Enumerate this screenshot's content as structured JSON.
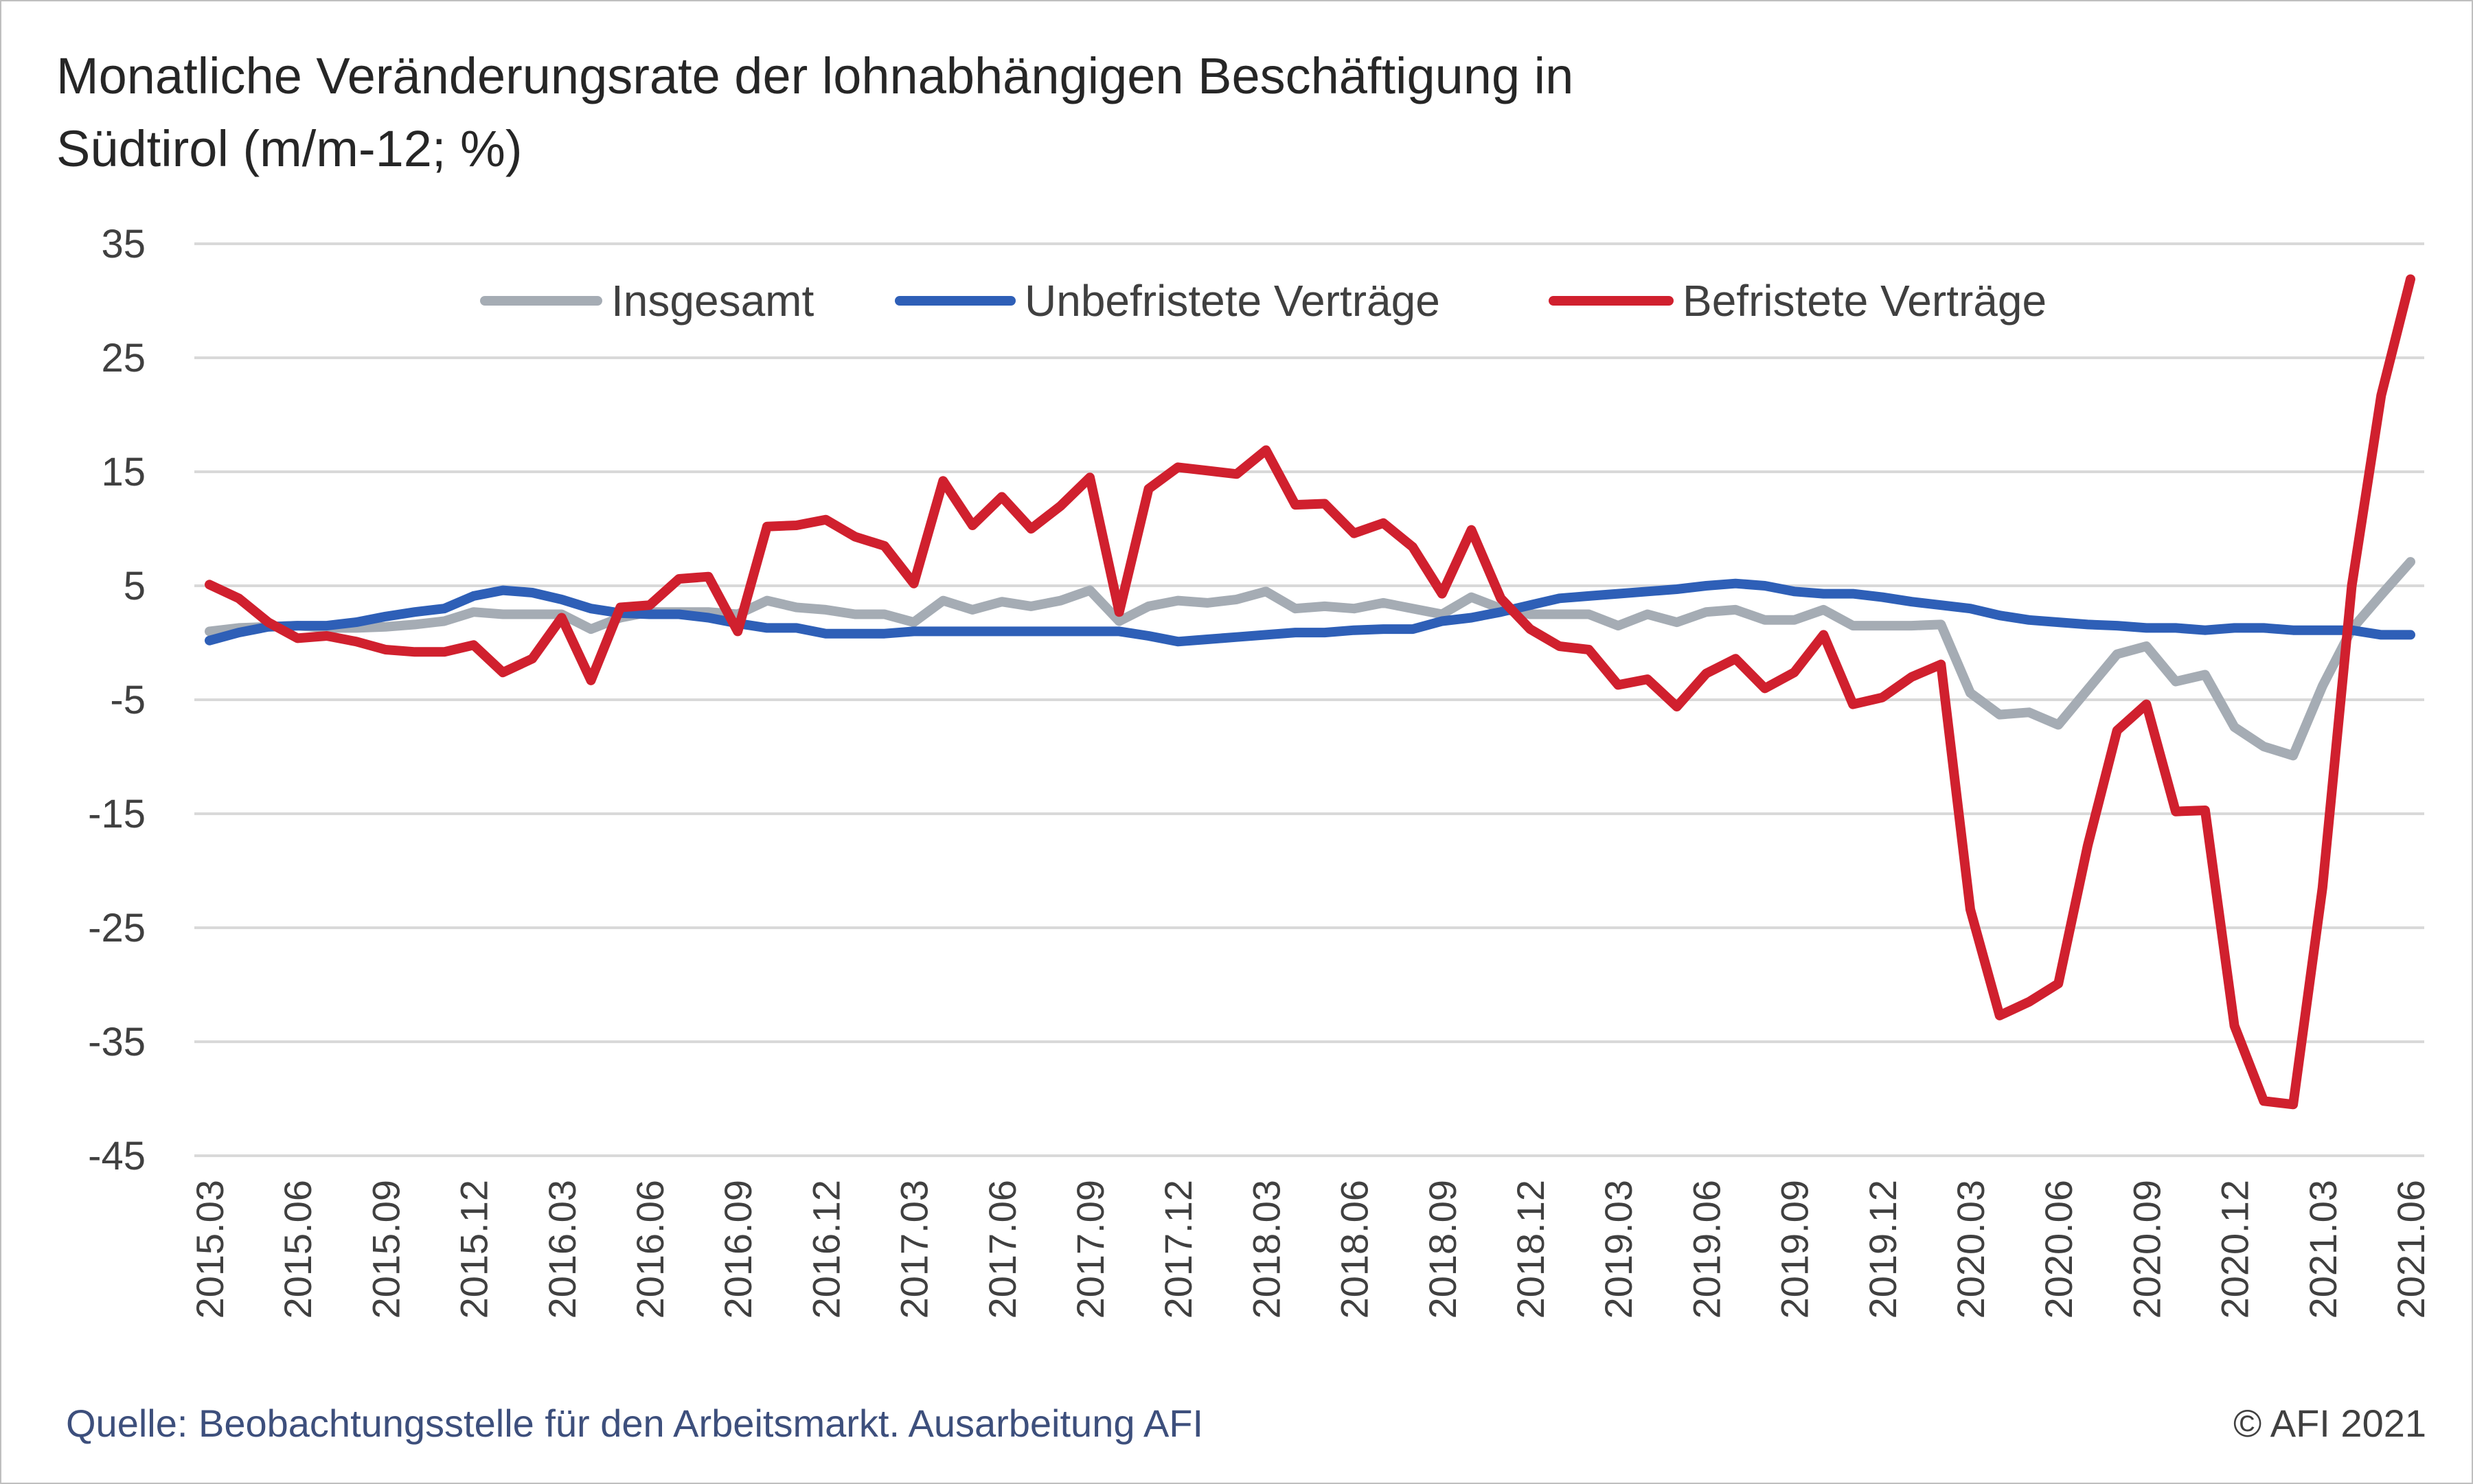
{
  "title": {
    "line1": "Monatliche Veränderungsrate der lohnabhängigen Beschäftigung in",
    "line2": "Südtirol (m/m-12; %)"
  },
  "footer": {
    "source": "Quelle: Beobachtungsstelle für den Arbeitsmarkt. Ausarbeitung AFI",
    "copyright": "© AFI 2021"
  },
  "chart_data": {
    "type": "line",
    "title": "Monatliche Veränderungsrate der lohnabhängigen Beschäftigung in Südtirol (m/m-12; %)",
    "ylim": [
      -45,
      35
    ],
    "yticks": [
      35,
      25,
      15,
      5,
      -5,
      -15,
      -25,
      -35,
      -45
    ],
    "grid": true,
    "legend_position": "top",
    "x_tick_labels": [
      "2015.03",
      "2015.06",
      "2015.09",
      "2015.12",
      "2016.03",
      "2016.06",
      "2016.09",
      "2016.12",
      "2017.03",
      "2017.06",
      "2017.09",
      "2017.12",
      "2018.03",
      "2018.06",
      "2018.09",
      "2018.12",
      "2019.03",
      "2019.06",
      "2019.09",
      "2019.12",
      "2020.03",
      "2020.06",
      "2020.09",
      "2020.12",
      "2021.03",
      "2021.06"
    ],
    "x": [
      "2015.03",
      "2015.04",
      "2015.05",
      "2015.06",
      "2015.07",
      "2015.08",
      "2015.09",
      "2015.10",
      "2015.11",
      "2015.12",
      "2016.01",
      "2016.02",
      "2016.03",
      "2016.04",
      "2016.05",
      "2016.06",
      "2016.07",
      "2016.08",
      "2016.09",
      "2016.10",
      "2016.11",
      "2016.12",
      "2017.01",
      "2017.02",
      "2017.03",
      "2017.04",
      "2017.05",
      "2017.06",
      "2017.07",
      "2017.08",
      "2017.09",
      "2017.10",
      "2017.11",
      "2017.12",
      "2018.01",
      "2018.02",
      "2018.03",
      "2018.04",
      "2018.05",
      "2018.06",
      "2018.07",
      "2018.08",
      "2018.09",
      "2018.10",
      "2018.11",
      "2018.12",
      "2019.01",
      "2019.02",
      "2019.03",
      "2019.04",
      "2019.05",
      "2019.06",
      "2019.07",
      "2019.08",
      "2019.09",
      "2019.10",
      "2019.11",
      "2019.12",
      "2020.01",
      "2020.02",
      "2020.03",
      "2020.04",
      "2020.05",
      "2020.06",
      "2020.07",
      "2020.08",
      "2020.09",
      "2020.10",
      "2020.11",
      "2020.12",
      "2021.01",
      "2021.02",
      "2021.03",
      "2021.04",
      "2021.05",
      "2021.06"
    ],
    "series": [
      {
        "name": "Insgesamt",
        "color": "#a5acb4",
        "values": [
          1.0,
          1.3,
          1.4,
          1.5,
          1.3,
          1.3,
          1.4,
          1.6,
          1.9,
          2.7,
          2.5,
          2.5,
          2.5,
          1.2,
          2.2,
          2.7,
          2.7,
          2.7,
          2.5,
          3.7,
          3.1,
          2.9,
          2.5,
          2.5,
          1.8,
          3.7,
          2.9,
          3.6,
          3.2,
          3.7,
          4.6,
          1.9,
          3.2,
          3.7,
          3.5,
          3.8,
          4.5,
          3.0,
          3.2,
          3.0,
          3.5,
          3.0,
          2.5,
          4.0,
          3.0,
          2.5,
          2.5,
          2.5,
          1.5,
          2.5,
          1.8,
          2.7,
          2.9,
          2.0,
          2.0,
          2.9,
          1.5,
          1.5,
          1.5,
          1.6,
          -4.4,
          -6.3,
          -6.1,
          -7.2,
          -4.1,
          -1.0,
          -0.3,
          -3.4,
          -2.8,
          -7.4,
          -9.1,
          -9.9,
          -3.8,
          1.2,
          4.2,
          7.1
        ]
      },
      {
        "name": "Unbefristete Verträge",
        "color": "#2e5fb7",
        "values": [
          0.2,
          0.9,
          1.4,
          1.5,
          1.5,
          1.8,
          2.3,
          2.7,
          3.0,
          4.1,
          4.6,
          4.4,
          3.8,
          3.0,
          2.6,
          2.5,
          2.5,
          2.2,
          1.7,
          1.3,
          1.3,
          0.8,
          0.8,
          0.8,
          1.0,
          1.0,
          1.0,
          1.0,
          1.0,
          1.0,
          1.0,
          1.0,
          0.6,
          0.1,
          0.3,
          0.5,
          0.7,
          0.9,
          0.9,
          1.1,
          1.2,
          1.2,
          1.9,
          2.2,
          2.7,
          3.3,
          3.9,
          4.1,
          4.3,
          4.5,
          4.7,
          5.0,
          5.2,
          5.0,
          4.5,
          4.3,
          4.3,
          4.0,
          3.6,
          3.3,
          3.0,
          2.4,
          2.0,
          1.8,
          1.6,
          1.5,
          1.3,
          1.3,
          1.1,
          1.3,
          1.3,
          1.1,
          1.1,
          1.1,
          0.7,
          0.7
        ]
      },
      {
        "name": "Befristete Verträge",
        "color": "#d0202e",
        "values": [
          5.1,
          3.9,
          1.8,
          0.4,
          0.6,
          0.1,
          -0.6,
          -0.8,
          -0.8,
          -0.2,
          -2.6,
          -1.4,
          2.2,
          -3.3,
          3.1,
          3.3,
          5.6,
          5.8,
          1.0,
          10.2,
          10.3,
          10.8,
          9.3,
          8.5,
          5.2,
          14.2,
          10.3,
          12.8,
          10.0,
          12.0,
          14.5,
          2.7,
          13.5,
          15.4,
          15.1,
          14.8,
          16.9,
          12.1,
          12.2,
          9.6,
          10.5,
          8.4,
          4.3,
          9.9,
          3.9,
          1.2,
          -0.3,
          -0.6,
          -3.7,
          -3.2,
          -5.6,
          -2.7,
          -1.4,
          -4.0,
          -2.6,
          0.7,
          -5.4,
          -4.8,
          -3.0,
          -1.9,
          -23.4,
          -32.7,
          -31.5,
          -29.9,
          -17.8,
          -7.7,
          -5.4,
          -14.8,
          -14.7,
          -33.6,
          -40.2,
          -40.5,
          -21.5,
          5.0,
          21.7,
          31.9
        ]
      }
    ]
  }
}
